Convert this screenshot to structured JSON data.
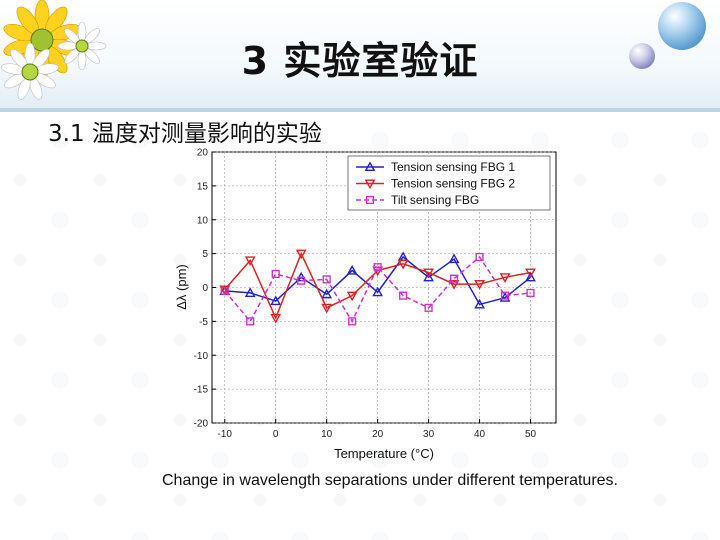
{
  "slide": {
    "title": "3 实验室验证",
    "subtitle": "3.1 温度对测量影响的实验",
    "caption": "Change in wavelength separations under different temperatures."
  },
  "chart_data": {
    "type": "line",
    "title": "",
    "xlabel": "Temperature (°C)",
    "ylabel": "Δλ (pm)",
    "xlim": [
      -12.5,
      55
    ],
    "ylim": [
      -20,
      20
    ],
    "xticks": [
      -10,
      0,
      10,
      20,
      30,
      40,
      50
    ],
    "yticks": [
      -20,
      -15,
      -10,
      -5,
      0,
      5,
      10,
      15,
      20
    ],
    "grid": true,
    "legend_position": "top-right",
    "series": [
      {
        "name": "Tension sensing FBG 1",
        "color": "#2222cc",
        "marker": "triangle-up",
        "dash": "solid",
        "x": [
          -10,
          -5,
          0,
          5,
          10,
          15,
          20,
          25,
          30,
          35,
          40,
          45,
          50
        ],
        "y": [
          -0.5,
          -0.8,
          -2,
          1.5,
          -1,
          2.5,
          -0.7,
          4.5,
          1.5,
          4.2,
          -2.5,
          -1.5,
          1.5
        ]
      },
      {
        "name": "Tension sensing FBG 2",
        "color": "#dd2222",
        "marker": "triangle-down",
        "dash": "solid",
        "x": [
          -10,
          -5,
          0,
          5,
          10,
          15,
          20,
          25,
          30,
          35,
          40,
          45,
          50
        ],
        "y": [
          -0.3,
          4,
          -4.5,
          5,
          -3,
          -1.2,
          2.5,
          3.5,
          2.2,
          0.5,
          0.5,
          1.5,
          2.2
        ]
      },
      {
        "name": "Tilt sensing FBG",
        "color": "#cc33cc",
        "marker": "square",
        "dash": "dashed",
        "x": [
          -10,
          -5,
          0,
          5,
          10,
          15,
          20,
          25,
          30,
          35,
          40,
          45,
          50
        ],
        "y": [
          -0.5,
          -5,
          2,
          1,
          1.2,
          -5,
          3,
          -1.2,
          -3,
          1.3,
          4.5,
          -1.2,
          -0.8
        ]
      }
    ]
  }
}
